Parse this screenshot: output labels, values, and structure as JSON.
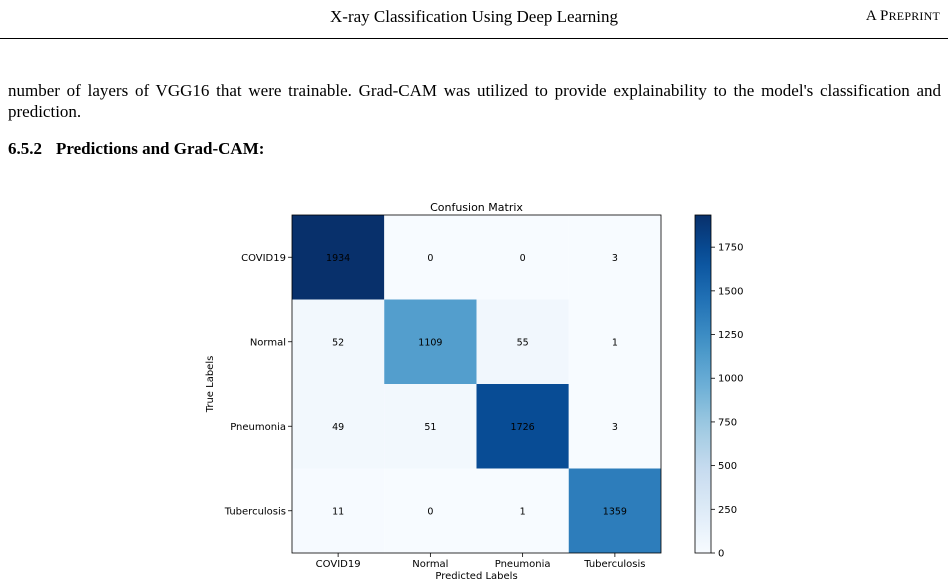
{
  "header": {
    "title": "X-ray Classification Using Deep Learning",
    "right": "A Preprint"
  },
  "paragraph": "number of layers of VGG16 that were trainable. Grad-CAM was utilized to provide explainability to the model's classification and prediction.",
  "section": {
    "number": "6.5.2",
    "title": "Predictions and Grad-CAM:"
  },
  "chart_data": {
    "type": "heatmap",
    "title": "Confusion Matrix",
    "xlabel": "Predicted Labels",
    "ylabel": "True Labels",
    "row_labels": [
      "COVID19",
      "Normal",
      "Pneumonia",
      "Tuberculosis"
    ],
    "col_labels": [
      "COVID19",
      "Normal",
      "Pneumonia",
      "Tuberculosis"
    ],
    "matrix": [
      [
        1934,
        0,
        0,
        3
      ],
      [
        52,
        1109,
        55,
        1
      ],
      [
        49,
        51,
        1726,
        3
      ],
      [
        11,
        0,
        1,
        1359
      ]
    ],
    "colormap": "Blues",
    "colorbar": {
      "min": 0,
      "max": 1934,
      "ticks": [
        0,
        250,
        500,
        750,
        1000,
        1250,
        1500,
        1750
      ]
    }
  }
}
